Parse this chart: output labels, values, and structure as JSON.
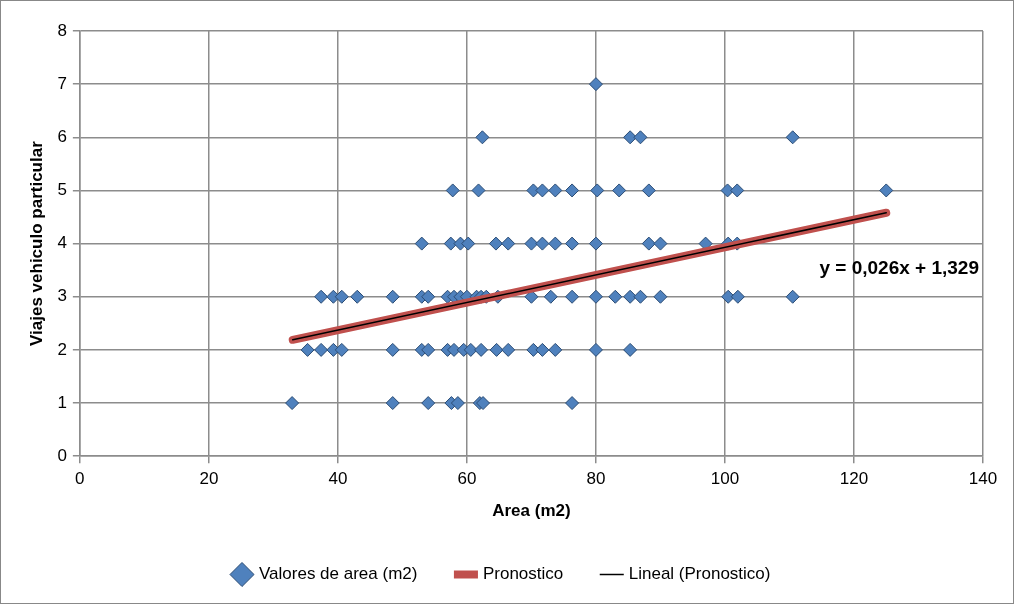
{
  "chart_data": {
    "type": "scatter",
    "xlabel": "Area (m2)",
    "ylabel": "Viajes vehiculo particular",
    "xlim": [
      0,
      140
    ],
    "xticks": [
      0,
      20,
      40,
      60,
      80,
      100,
      120,
      140
    ],
    "ylim": [
      0,
      8
    ],
    "yticks": [
      0,
      1,
      2,
      3,
      4,
      5,
      6,
      7,
      8
    ],
    "grid": true,
    "legend": "bottom",
    "series": [
      {
        "name": "Valores de area (m2)",
        "color": "#4f81bd",
        "marker": "diamond",
        "x": [
          32.9,
          48.5,
          54,
          57.6,
          58.6,
          62,
          62.5,
          76.3,
          35.3,
          37.4,
          39.3,
          40.6,
          48.5,
          53,
          54,
          57,
          58,
          59.5,
          60.6,
          62.2,
          64.6,
          66.4,
          70.3,
          71.7,
          73.7,
          80,
          85.3,
          37.4,
          39.3,
          40.6,
          43,
          48.5,
          53,
          54,
          57,
          58,
          59,
          60,
          61.5,
          62.2,
          63,
          64.8,
          70,
          73,
          76.3,
          80,
          83,
          85.3,
          86.9,
          90,
          100.5,
          102,
          110.5,
          53,
          57.5,
          59,
          60.2,
          64.5,
          66.4,
          70,
          71.7,
          73.7,
          76.3,
          80,
          88.2,
          90,
          97,
          100.5,
          101.9,
          57.8,
          61.8,
          70.3,
          71.7,
          73.7,
          76.3,
          80.2,
          83.6,
          88.2,
          100.4,
          101.9,
          125,
          62.4,
          85.3,
          86.9,
          110.5,
          80
        ],
        "values": [
          1,
          1,
          1,
          1,
          1,
          1,
          1,
          1,
          2,
          2,
          2,
          2,
          2,
          2,
          2,
          2,
          2,
          2,
          2,
          2,
          2,
          2,
          2,
          2,
          2,
          2,
          2,
          3,
          3,
          3,
          3,
          3,
          3,
          3,
          3,
          3,
          3,
          3,
          3,
          3,
          3,
          3,
          3,
          3,
          3,
          3,
          3,
          3,
          3,
          3,
          3,
          3,
          3,
          4,
          4,
          4,
          4,
          4,
          4,
          4,
          4,
          4,
          4,
          4,
          4,
          4,
          4,
          4,
          4,
          5,
          5,
          5,
          5,
          5,
          5,
          5,
          5,
          5,
          5,
          5,
          5,
          6,
          6,
          6,
          6,
          7
        ]
      },
      {
        "name": "Pronostico",
        "color": "#c0504d",
        "type": "line",
        "marker": "none",
        "line_style": "solid",
        "x": [
          33,
          125
        ],
        "values": [
          2.19,
          4.58
        ]
      },
      {
        "name": "Lineal (Pronostico)",
        "color": "#000000",
        "type": "line",
        "marker": "none",
        "line_style": "solid",
        "x": [
          33,
          125
        ],
        "values": [
          2.19,
          4.58
        ]
      }
    ],
    "annotations": [
      "y = 0,026x + 1,329"
    ]
  }
}
